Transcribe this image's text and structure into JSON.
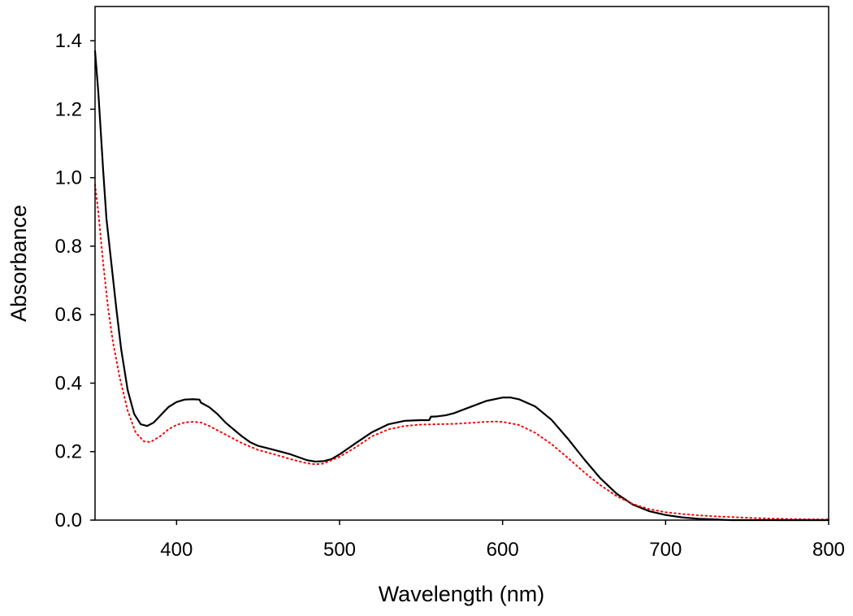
{
  "chart_data": {
    "type": "line",
    "xlabel": "Wavelength (nm)",
    "ylabel": "Absorbance",
    "xlim": [
      350,
      800
    ],
    "ylim": [
      0,
      1.5
    ],
    "x_ticks": [
      "400",
      "500",
      "600",
      "700",
      "800"
    ],
    "y_ticks": [
      "0.0",
      "0.2",
      "0.4",
      "0.6",
      "0.8",
      "1.0",
      "1.2",
      "1.4"
    ],
    "grid": false,
    "legend": "none",
    "series": [
      {
        "color": "#000000",
        "line_style": "solid",
        "points": [
          [
            350,
            1.37
          ],
          [
            352,
            1.25
          ],
          [
            355,
            1.02
          ],
          [
            357,
            0.88
          ],
          [
            360,
            0.75
          ],
          [
            363,
            0.62
          ],
          [
            366,
            0.5
          ],
          [
            370,
            0.38
          ],
          [
            374,
            0.31
          ],
          [
            378,
            0.28
          ],
          [
            382,
            0.275
          ],
          [
            386,
            0.285
          ],
          [
            390,
            0.305
          ],
          [
            395,
            0.33
          ],
          [
            400,
            0.345
          ],
          [
            405,
            0.352
          ],
          [
            410,
            0.353
          ],
          [
            414,
            0.352
          ],
          [
            415,
            0.343
          ],
          [
            420,
            0.33
          ],
          [
            425,
            0.31
          ],
          [
            430,
            0.285
          ],
          [
            435,
            0.265
          ],
          [
            440,
            0.245
          ],
          [
            445,
            0.228
          ],
          [
            450,
            0.217
          ],
          [
            460,
            0.205
          ],
          [
            470,
            0.192
          ],
          [
            480,
            0.175
          ],
          [
            485,
            0.171
          ],
          [
            490,
            0.172
          ],
          [
            495,
            0.178
          ],
          [
            500,
            0.192
          ],
          [
            510,
            0.225
          ],
          [
            520,
            0.257
          ],
          [
            530,
            0.28
          ],
          [
            540,
            0.29
          ],
          [
            550,
            0.292
          ],
          [
            555,
            0.292
          ],
          [
            556,
            0.302
          ],
          [
            560,
            0.303
          ],
          [
            565,
            0.306
          ],
          [
            570,
            0.312
          ],
          [
            580,
            0.33
          ],
          [
            590,
            0.348
          ],
          [
            600,
            0.358
          ],
          [
            605,
            0.358
          ],
          [
            610,
            0.353
          ],
          [
            620,
            0.332
          ],
          [
            630,
            0.293
          ],
          [
            640,
            0.238
          ],
          [
            650,
            0.178
          ],
          [
            660,
            0.122
          ],
          [
            670,
            0.077
          ],
          [
            680,
            0.045
          ],
          [
            690,
            0.026
          ],
          [
            700,
            0.015
          ],
          [
            710,
            0.008
          ],
          [
            720,
            0.004
          ],
          [
            730,
            0.002
          ],
          [
            740,
            0.0
          ],
          [
            800,
            0.0
          ]
        ]
      },
      {
        "color": "#ff0000",
        "line_style": "dotted",
        "points": [
          [
            350,
            0.98
          ],
          [
            352,
            0.9
          ],
          [
            355,
            0.75
          ],
          [
            358,
            0.62
          ],
          [
            361,
            0.52
          ],
          [
            365,
            0.42
          ],
          [
            370,
            0.32
          ],
          [
            375,
            0.255
          ],
          [
            380,
            0.23
          ],
          [
            384,
            0.228
          ],
          [
            390,
            0.245
          ],
          [
            395,
            0.265
          ],
          [
            400,
            0.278
          ],
          [
            405,
            0.285
          ],
          [
            410,
            0.287
          ],
          [
            415,
            0.285
          ],
          [
            420,
            0.275
          ],
          [
            430,
            0.25
          ],
          [
            440,
            0.225
          ],
          [
            450,
            0.205
          ],
          [
            460,
            0.192
          ],
          [
            470,
            0.178
          ],
          [
            480,
            0.166
          ],
          [
            485,
            0.163
          ],
          [
            490,
            0.165
          ],
          [
            500,
            0.185
          ],
          [
            510,
            0.213
          ],
          [
            520,
            0.245
          ],
          [
            530,
            0.265
          ],
          [
            540,
            0.275
          ],
          [
            550,
            0.279
          ],
          [
            560,
            0.28
          ],
          [
            570,
            0.281
          ],
          [
            580,
            0.284
          ],
          [
            590,
            0.287
          ],
          [
            595,
            0.288
          ],
          [
            600,
            0.287
          ],
          [
            610,
            0.278
          ],
          [
            620,
            0.255
          ],
          [
            630,
            0.222
          ],
          [
            640,
            0.182
          ],
          [
            650,
            0.14
          ],
          [
            660,
            0.102
          ],
          [
            670,
            0.07
          ],
          [
            680,
            0.047
          ],
          [
            690,
            0.032
          ],
          [
            700,
            0.023
          ],
          [
            710,
            0.018
          ],
          [
            720,
            0.014
          ],
          [
            730,
            0.011
          ],
          [
            740,
            0.009
          ],
          [
            750,
            0.007
          ],
          [
            760,
            0.005
          ],
          [
            780,
            0.003
          ],
          [
            800,
            0.002
          ]
        ]
      }
    ]
  }
}
